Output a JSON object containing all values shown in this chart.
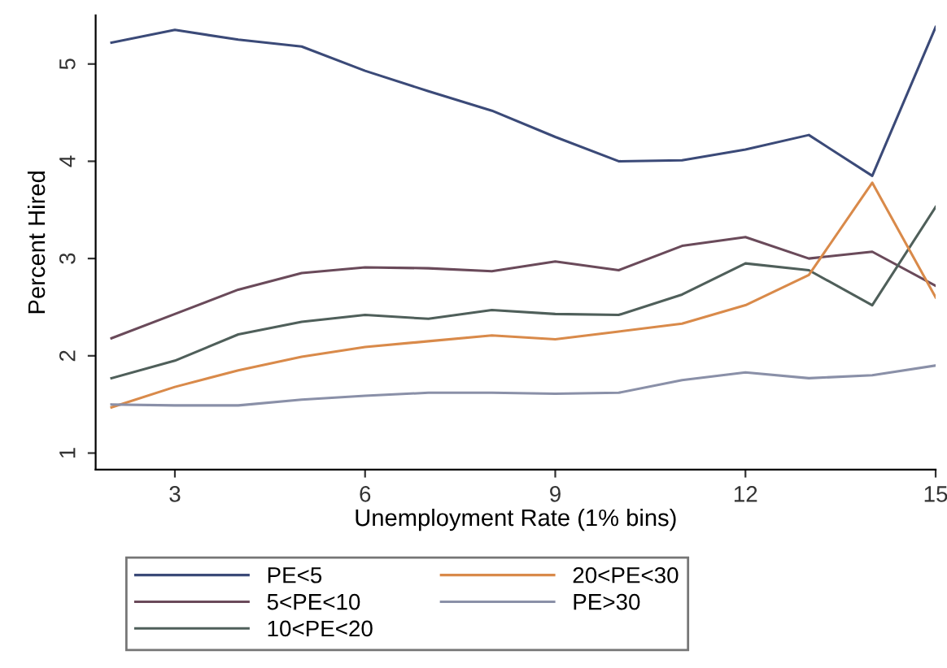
{
  "chart_data": {
    "type": "line",
    "xlabel": "Unemployment Rate (1% bins)",
    "ylabel": "Percent Hired",
    "x": [
      2,
      3,
      4,
      5,
      6,
      7,
      8,
      9,
      10,
      11,
      12,
      13,
      14,
      15
    ],
    "xlim": [
      1.75,
      15
    ],
    "xticks": [
      3,
      6,
      9,
      12,
      15
    ],
    "ylim": [
      0.83,
      5.5
    ],
    "yticks": [
      1,
      2,
      3,
      4,
      5
    ],
    "grid": false,
    "legend": "bottom",
    "marker": "none",
    "line_style": "solid",
    "series": [
      {
        "name": "PE<5",
        "color": "#3b4a78",
        "values": [
          5.22,
          5.35,
          5.25,
          5.18,
          4.93,
          4.72,
          4.52,
          4.25,
          4.0,
          4.01,
          4.12,
          4.27,
          3.85,
          5.38
        ]
      },
      {
        "name": "5<PE<10",
        "color": "#6a4a5a",
        "values": [
          2.18,
          2.43,
          2.68,
          2.85,
          2.91,
          2.9,
          2.87,
          2.97,
          2.88,
          3.13,
          3.22,
          3.0,
          3.07,
          2.72
        ]
      },
      {
        "name": "10<PE<20",
        "color": "#4f5f5a",
        "values": [
          1.77,
          1.95,
          2.22,
          2.35,
          2.42,
          2.38,
          2.47,
          2.43,
          2.42,
          2.63,
          2.95,
          2.88,
          2.52,
          3.53
        ]
      },
      {
        "name": "20<PE<30",
        "color": "#d98a4a",
        "values": [
          1.47,
          1.68,
          1.85,
          1.99,
          2.09,
          2.15,
          2.21,
          2.17,
          2.25,
          2.33,
          2.52,
          2.83,
          3.78,
          2.6
        ]
      },
      {
        "name": "PE>30",
        "color": "#8a90a8",
        "values": [
          1.5,
          1.49,
          1.49,
          1.55,
          1.59,
          1.62,
          1.62,
          1.61,
          1.62,
          1.75,
          1.83,
          1.77,
          1.8,
          1.9
        ]
      }
    ]
  }
}
